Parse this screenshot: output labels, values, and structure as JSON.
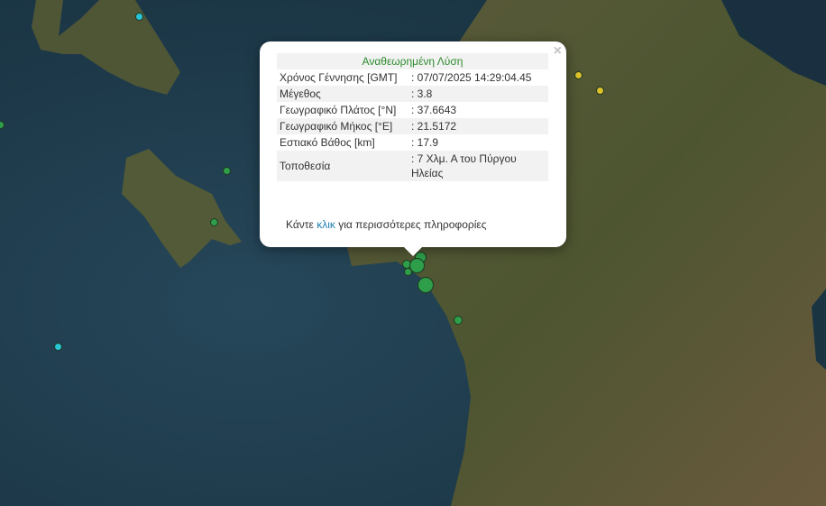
{
  "popup": {
    "title": "Αναθεωρημένη Λύση",
    "close_icon": "×",
    "rows": [
      {
        "label": "Χρόνος Γέννησης [GMT]",
        "value": ": 07/07/2025 14:29:04.45"
      },
      {
        "label": "Μέγεθος",
        "value": ": 3.8"
      },
      {
        "label": "Γεωγραφικό Πλάτος [°N]",
        "value": ": 37.6643"
      },
      {
        "label": "Γεωγραφικό Μήκος [°E]",
        "value": ": 21.5172"
      },
      {
        "label": "Εστιακό Βάθος [km]",
        "value": ": 17.9"
      },
      {
        "label": "Τοποθεσία",
        "value": ": 7 Χλμ. Α του Πύργου Ηλείας"
      }
    ],
    "more_prefix": "Κάντε ",
    "more_link": "κλικ",
    "more_suffix": " για περισσότερες πληροφορίες"
  },
  "colors": {
    "recent": "#2e9e4a",
    "older": "#e0c12a",
    "oldest": "#29c4d6",
    "title": "#2e8b2e",
    "link": "#1f7fb0"
  }
}
